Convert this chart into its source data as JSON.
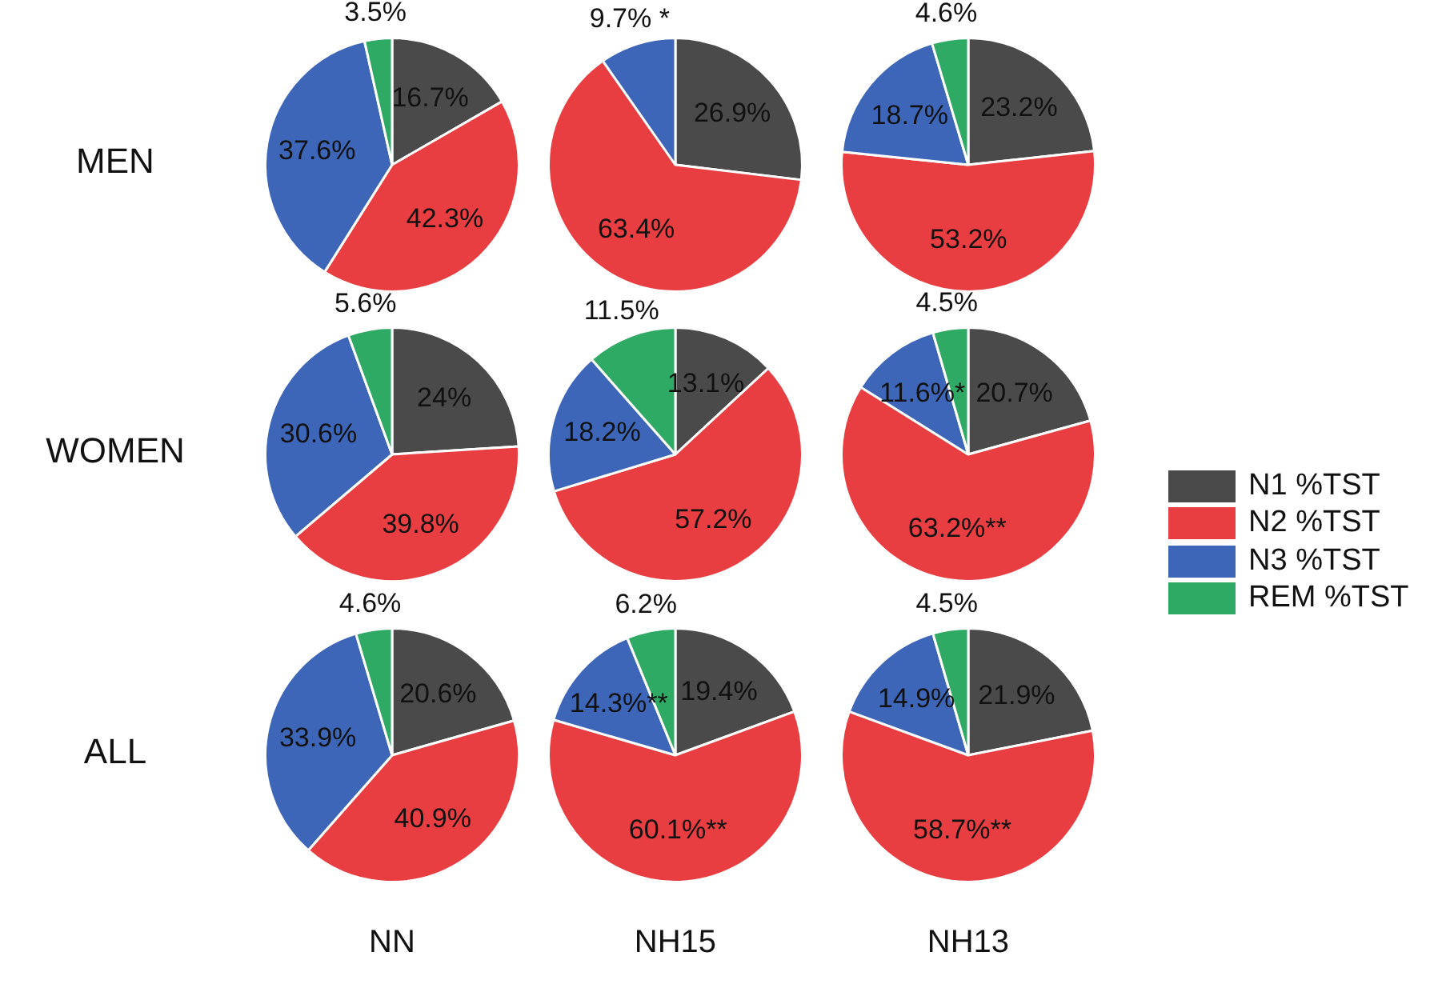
{
  "chart_data": [
    {
      "type": "pie",
      "ylabel": "MEN",
      "categories": [
        null,
        null,
        null,
        null
      ],
      "colors": [
        "#4a4a4a",
        "#e83e42",
        "#3d66b8",
        "#2eaa64"
      ],
      "values": [
        16.7,
        42.3,
        37.6,
        3.5
      ],
      "value_labels": [
        "16.7%",
        "42.3%",
        "37.6%",
        "3.5%"
      ]
    },
    {
      "type": "pie",
      "categories": [
        null,
        null,
        null,
        null
      ],
      "colors": [
        "#4a4a4a",
        "#e83e42",
        "#3d66b8",
        "#2eaa64"
      ],
      "values": [
        26.9,
        63.4,
        9.7,
        null
      ],
      "value_labels": [
        "26.9%",
        "63.4%",
        "9.7% *",
        null
      ]
    },
    {
      "type": "pie",
      "categories": [
        null,
        null,
        null,
        null
      ],
      "colors": [
        "#4a4a4a",
        "#e83e42",
        "#3d66b8",
        "#2eaa64"
      ],
      "values": [
        23.2,
        53.2,
        18.7,
        4.6
      ],
      "value_labels": [
        "23.2%",
        "53.2%",
        "18.7%",
        "4.6%"
      ]
    },
    {
      "type": "pie",
      "ylabel": "WOMEN",
      "categories": [
        null,
        null,
        null,
        null
      ],
      "colors": [
        "#4a4a4a",
        "#e83e42",
        "#3d66b8",
        "#2eaa64"
      ],
      "values": [
        24,
        39.8,
        30.6,
        5.6
      ],
      "value_labels": [
        "24%",
        "39.8%",
        "30.6%",
        "5.6%"
      ]
    },
    {
      "type": "pie",
      "categories": [
        null,
        null,
        null,
        null
      ],
      "colors": [
        "#4a4a4a",
        "#e83e42",
        "#3d66b8",
        "#2eaa64"
      ],
      "values": [
        13.1,
        57.2,
        18.2,
        11.5
      ],
      "value_labels": [
        "13.1%",
        "57.2%",
        "18.2%",
        "11.5%"
      ]
    },
    {
      "type": "pie",
      "legend": "right",
      "categories": [
        "N1 %TST",
        "N2 %TST",
        "N3 %TST",
        "REM %TST"
      ],
      "colors": [
        "#4a4a4a",
        "#e83e42",
        "#3d66b8",
        "#2eaa64"
      ],
      "values": [
        20.7,
        63.2,
        11.6,
        4.5
      ],
      "value_labels": [
        "20.7%",
        "63.2%**",
        "11.6%*",
        "4.5%"
      ]
    },
    {
      "type": "pie",
      "ylabel": "ALL",
      "xlabel": "NN",
      "categories": [
        null,
        null,
        null,
        null
      ],
      "colors": [
        "#4a4a4a",
        "#e83e42",
        "#3d66b8",
        "#2eaa64"
      ],
      "values": [
        20.6,
        40.9,
        33.9,
        4.6
      ],
      "value_labels": [
        "20.6%",
        "40.9%",
        "33.9%",
        "4.6%"
      ]
    },
    {
      "type": "pie",
      "xlabel": "NH15",
      "categories": [
        null,
        null,
        null,
        null
      ],
      "colors": [
        "#4a4a4a",
        "#e83e42",
        "#3d66b8",
        "#2eaa64"
      ],
      "values": [
        19.4,
        60.1,
        14.3,
        6.2
      ],
      "value_labels": [
        "19.4%",
        "60.1%**",
        "14.3%**",
        "6.2%"
      ]
    },
    {
      "type": "pie",
      "xlabel": "NH13",
      "categories": [
        null,
        null,
        null,
        null
      ],
      "colors": [
        "#4a4a4a",
        "#e83e42",
        "#3d66b8",
        "#2eaa64"
      ],
      "values": [
        21.9,
        58.7,
        14.9,
        4.5
      ],
      "value_labels": [
        "21.9%",
        "58.7%**",
        "14.9%",
        "4.5%"
      ]
    }
  ]
}
